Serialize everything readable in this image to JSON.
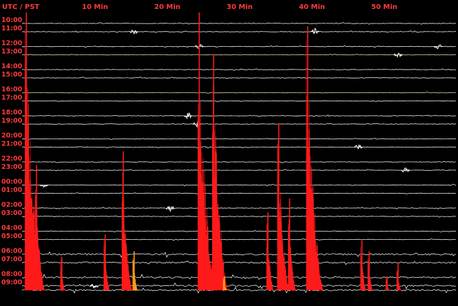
{
  "chart_data": {
    "type": "line",
    "header": {
      "timezone_label": "UTC / PST",
      "minute_ticks": [
        "10 Min",
        "20 Min",
        "30 Min",
        "40 Min",
        "50 Min"
      ],
      "minute_values": [
        10,
        20,
        30,
        40,
        50
      ]
    },
    "x_range_minutes": [
      0,
      60
    ],
    "rows": [
      {
        "utc": "10:00",
        "pst": "11:00",
        "color": "#ffffff"
      },
      {
        "utc": "12:00",
        "pst": "13:00",
        "color": "#ffffff"
      },
      {
        "utc": "14:00",
        "pst": "15:00",
        "color": "#ffffff"
      },
      {
        "utc": "16:00",
        "pst": "17:00",
        "color": "#ffffff"
      },
      {
        "utc": "18:00",
        "pst": "19:00",
        "color": "#ffffff"
      },
      {
        "utc": "20:00",
        "pst": "21:00",
        "color": "#ffffff"
      },
      {
        "utc": "22:00",
        "pst": "23:00",
        "color": "#ffffff"
      },
      {
        "utc": "00:00",
        "pst": "01:00",
        "color": "#ffffff"
      },
      {
        "utc": "02:00",
        "pst": "03:00",
        "color": "#ffffff"
      },
      {
        "utc": "04:00",
        "pst": "05:00",
        "color": "#ffffff"
      },
      {
        "utc": "06:00",
        "pst": "07:00",
        "color": "#ffffff"
      },
      {
        "utc": "08:00",
        "pst": "09:00",
        "color": "#ffffff"
      }
    ],
    "events": [
      {
        "minute": 0.6,
        "height": 1.0,
        "color": "#ff1a1a"
      },
      {
        "minute": 2.0,
        "height": 0.45,
        "color": "#ff1a1a"
      },
      {
        "minute": 5.5,
        "height": 0.12,
        "color": "#ff1a1a"
      },
      {
        "minute": 11.5,
        "height": 0.2,
        "color": "#ff1a1a"
      },
      {
        "minute": 14.0,
        "height": 0.5,
        "color": "#ff1a1a"
      },
      {
        "minute": 15.5,
        "height": 0.14,
        "color": "#ff9a1a"
      },
      {
        "minute": 24.5,
        "height": 1.0,
        "color": "#ff1a1a"
      },
      {
        "minute": 26.5,
        "height": 0.85,
        "color": "#ff1a1a"
      },
      {
        "minute": 28.0,
        "height": 0.05,
        "color": "#ff9a1a"
      },
      {
        "minute": 34.0,
        "height": 0.28,
        "color": "#ff1a1a"
      },
      {
        "minute": 35.5,
        "height": 0.6,
        "color": "#ff1a1a"
      },
      {
        "minute": 37.0,
        "height": 0.33,
        "color": "#ff1a1a"
      },
      {
        "minute": 39.5,
        "height": 0.95,
        "color": "#ff1a1a"
      },
      {
        "minute": 47.0,
        "height": 0.18,
        "color": "#ff1a1a"
      },
      {
        "minute": 48.0,
        "height": 0.14,
        "color": "#ff1a1a"
      },
      {
        "minute": 50.5,
        "height": 0.05,
        "color": "#ff1a1a"
      },
      {
        "minute": 52.0,
        "height": 0.1,
        "color": "#ff1a1a"
      }
    ],
    "footer_text": "",
    "grid": false,
    "legend": "none"
  }
}
